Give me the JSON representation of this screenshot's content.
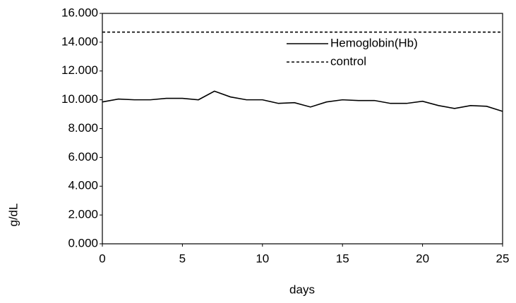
{
  "chart_data": {
    "type": "line",
    "x_label": "days",
    "y_label": "g/dL",
    "x": [
      0,
      1,
      2,
      3,
      4,
      5,
      6,
      7,
      8,
      9,
      10,
      11,
      12,
      13,
      14,
      15,
      16,
      17,
      18,
      19,
      20,
      21,
      22,
      23,
      24,
      25
    ],
    "series": [
      {
        "name": "Hemoglobin(Hb)",
        "color": "#000000",
        "dash": "solid",
        "values": [
          9.85,
          10.05,
          10.0,
          10.0,
          10.1,
          10.1,
          10.0,
          10.6,
          10.2,
          10.0,
          10.0,
          9.75,
          9.8,
          9.5,
          9.85,
          10.0,
          9.95,
          9.95,
          9.75,
          9.75,
          9.9,
          9.6,
          9.4,
          9.6,
          9.55,
          9.2
        ]
      },
      {
        "name": "control",
        "color": "#000000",
        "dash": "dotted",
        "values": [
          14.7,
          14.7,
          14.7,
          14.7,
          14.7,
          14.7,
          14.7,
          14.7,
          14.7,
          14.7,
          14.7,
          14.7,
          14.7,
          14.7,
          14.7,
          14.7,
          14.7,
          14.7,
          14.7,
          14.7,
          14.7,
          14.7,
          14.7,
          14.7,
          14.7,
          14.7
        ]
      }
    ],
    "xlim": [
      0,
      25
    ],
    "xticks": [
      0,
      5,
      10,
      15,
      20,
      25
    ],
    "ylim": [
      0,
      16
    ],
    "yticks": [
      {
        "value": 0,
        "label": "0.000"
      },
      {
        "value": 2,
        "label": "2.000"
      },
      {
        "value": 4,
        "label": "4.000"
      },
      {
        "value": 6,
        "label": "6.000"
      },
      {
        "value": 8,
        "label": "8.000"
      },
      {
        "value": 10,
        "label": "10.000"
      },
      {
        "value": 12,
        "label": "12.000"
      },
      {
        "value": 14,
        "label": "14.000"
      },
      {
        "value": 16,
        "label": "16.000"
      }
    ],
    "grid": false
  }
}
